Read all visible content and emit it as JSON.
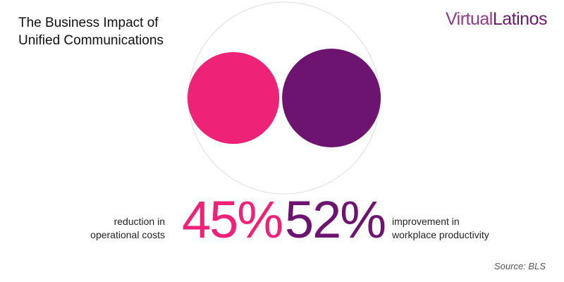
{
  "title": {
    "line1": "The Business Impact of",
    "line2": "Unified Communications"
  },
  "logo": {
    "part1": "Virtual",
    "part2": "Latinos"
  },
  "chart_data": {
    "type": "bubble",
    "items": [
      {
        "value": 45,
        "label": "45%",
        "description_line1": "reduction in",
        "description_line2": "operational costs",
        "color": "#ee2277"
      },
      {
        "value": 52,
        "label": "52%",
        "description_line1": "improvement in",
        "description_line2": "workplace productivity",
        "color": "#6d1370"
      }
    ],
    "outline_color": "#dddddd"
  },
  "source": "Source: BLS"
}
